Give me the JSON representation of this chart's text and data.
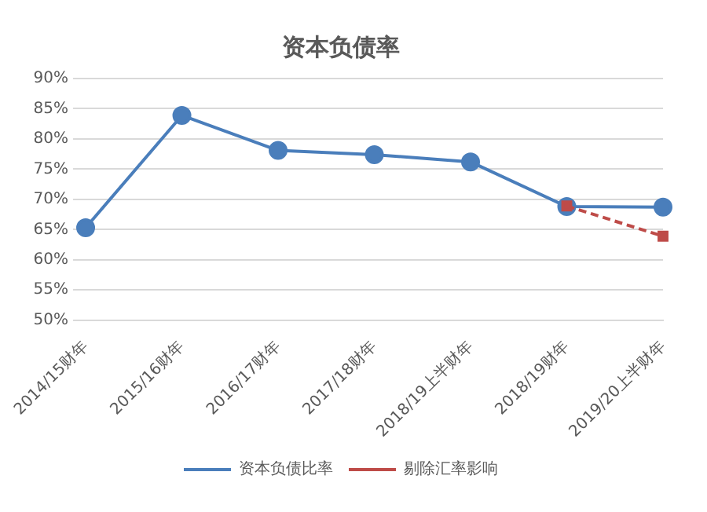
{
  "chart_data": {
    "type": "line",
    "title": "资本负债率",
    "categories": [
      "2014/15财年",
      "2015/16财年",
      "2016/17财年",
      "2017/18财年",
      "2018/19上半财年",
      "2018/19财年",
      "2019/20上半财年"
    ],
    "series": [
      {
        "name": "资本负债比率",
        "color": "#4a7ebb",
        "marker": "circle",
        "line_style": "solid",
        "values": [
          65.3,
          83.9,
          78.1,
          77.4,
          76.2,
          68.8,
          68.7
        ]
      },
      {
        "name": "剔除汇率影响",
        "color": "#be4b48",
        "marker": "square",
        "line_style": "dashed",
        "values": [
          null,
          null,
          null,
          null,
          null,
          68.9,
          63.9
        ]
      }
    ],
    "ylim": [
      50,
      90
    ],
    "yticks": [
      {
        "value": 50,
        "label": "50%"
      },
      {
        "value": 55,
        "label": "55%"
      },
      {
        "value": 60,
        "label": "60%"
      },
      {
        "value": 65,
        "label": "65%"
      },
      {
        "value": 70,
        "label": "70%"
      },
      {
        "value": 75,
        "label": "75%"
      },
      {
        "value": 80,
        "label": "80%"
      },
      {
        "value": 85,
        "label": "85%"
      },
      {
        "value": 90,
        "label": "90%"
      }
    ],
    "grid": "y",
    "legend": "bottom"
  }
}
